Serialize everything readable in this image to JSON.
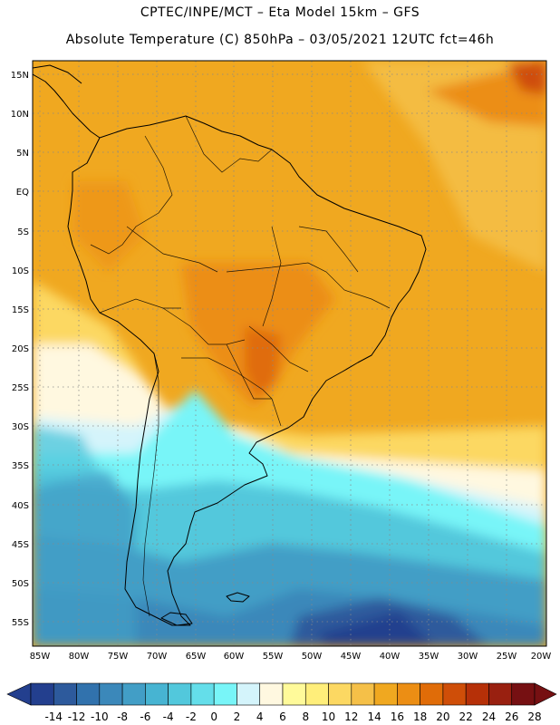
{
  "header": {
    "line1": "CPTEC/INPE/MCT –  Eta Model 15km – GFS",
    "line2": "Absolute Temperature (C) 850hPa – 03/05/2021 12UTC fct=46h"
  },
  "map": {
    "lat_labels": [
      "15N",
      "10N",
      "5N",
      "EQ",
      "5S",
      "10S",
      "15S",
      "20S",
      "25S",
      "30S",
      "35S",
      "40S",
      "45S",
      "50S",
      "55S"
    ],
    "lon_labels": [
      "85W",
      "80W",
      "75W",
      "70W",
      "65W",
      "60W",
      "55W",
      "50W",
      "45W",
      "40W",
      "35W",
      "30W",
      "25W",
      "20W"
    ]
  },
  "colorbar": {
    "labels": [
      "-14",
      "-12",
      "-10",
      "-8",
      "-6",
      "-4",
      "-2",
      "0",
      "2",
      "4",
      "6",
      "8",
      "10",
      "12",
      "14",
      "16",
      "18",
      "20",
      "22",
      "24",
      "26",
      "28"
    ],
    "colors": [
      "#233f8e",
      "#2d5a9c",
      "#3172ad",
      "#3b88ba",
      "#429ec6",
      "#47b4d2",
      "#52c8dc",
      "#64deea",
      "#78f5f8",
      "#d4f4fb",
      "#fff8e0",
      "#fffa9a",
      "#ffee7a",
      "#fcd862",
      "#f5c048",
      "#f0a820",
      "#ec8e14",
      "#e06c08",
      "#cf4e08",
      "#b63008",
      "#992010",
      "#761012"
    ]
  }
}
